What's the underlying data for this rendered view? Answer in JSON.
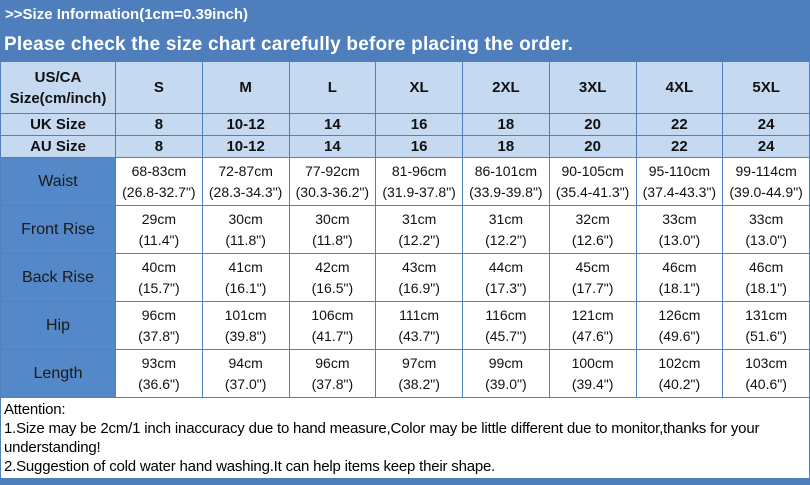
{
  "colors": {
    "banner_blue": "#4e7fbc",
    "label_blue": "#5588c8",
    "light_blue": "#c5d9f1",
    "border_blue": "#4f81bd",
    "cell_white": "#ffffff"
  },
  "header": {
    "title": ">>Size Information(1cm=0.39inch)",
    "subtitle": "Please check the size chart carefully before placing the order."
  },
  "table": {
    "corner_label": "US/CA Size(cm/inch)",
    "sizes": [
      "S",
      "M",
      "L",
      "XL",
      "2XL",
      "3XL",
      "4XL",
      "5XL"
    ],
    "size_rows": [
      {
        "label": "UK Size",
        "values": [
          "8",
          "10-12",
          "14",
          "16",
          "18",
          "20",
          "22",
          "24"
        ]
      },
      {
        "label": "AU Size",
        "values": [
          "8",
          "10-12",
          "14",
          "16",
          "18",
          "20",
          "22",
          "24"
        ]
      }
    ],
    "measure_rows": [
      {
        "label": "Waist",
        "cm": [
          "68-83cm",
          "72-87cm",
          "77-92cm",
          "81-96cm",
          "86-101cm",
          "90-105cm",
          "95-110cm",
          "99-114cm"
        ],
        "inch": [
          "(26.8-32.7\")",
          "(28.3-34.3\")",
          "(30.3-36.2\")",
          "(31.9-37.8\")",
          "(33.9-39.8\")",
          "(35.4-41.3\")",
          "(37.4-43.3\")",
          "(39.0-44.9\")"
        ]
      },
      {
        "label": "Front Rise",
        "cm": [
          "29cm",
          "30cm",
          "30cm",
          "31cm",
          "31cm",
          "32cm",
          "33cm",
          "33cm"
        ],
        "inch": [
          "(11.4\")",
          "(11.8\")",
          "(11.8\")",
          "(12.2\")",
          "(12.2\")",
          "(12.6\")",
          "(13.0\")",
          "(13.0\")"
        ]
      },
      {
        "label": "Back Rise",
        "cm": [
          "40cm",
          "41cm",
          "42cm",
          "43cm",
          "44cm",
          "45cm",
          "46cm",
          "46cm"
        ],
        "inch": [
          "(15.7\")",
          "(16.1\")",
          "(16.5\")",
          "(16.9\")",
          "(17.3\")",
          "(17.7\")",
          "(18.1\")",
          "(18.1\")"
        ]
      },
      {
        "label": "Hip",
        "cm": [
          "96cm",
          "101cm",
          "106cm",
          "111cm",
          "116cm",
          "121cm",
          "126cm",
          "131cm"
        ],
        "inch": [
          "(37.8\")",
          "(39.8\")",
          "(41.7\")",
          "(43.7\")",
          "(45.7\")",
          "(47.6\")",
          "(49.6\")",
          "(51.6\")"
        ]
      },
      {
        "label": "Length",
        "cm": [
          "93cm",
          "94cm",
          "96cm",
          "97cm",
          "99cm",
          "100cm",
          "102cm",
          "103cm"
        ],
        "inch": [
          "(36.6\")",
          "(37.0\")",
          "(37.8\")",
          "(38.2\")",
          "(39.0\")",
          "(39.4\")",
          "(40.2\")",
          "(40.6\")"
        ]
      }
    ]
  },
  "attention": {
    "title": "Attention:",
    "notes": [
      "1.Size may be 2cm/1 inch inaccuracy due to hand measure,Color may be little different due to monitor,thanks for your understanding!",
      "2.Suggestion of cold water hand washing.It can help items keep their shape."
    ]
  }
}
